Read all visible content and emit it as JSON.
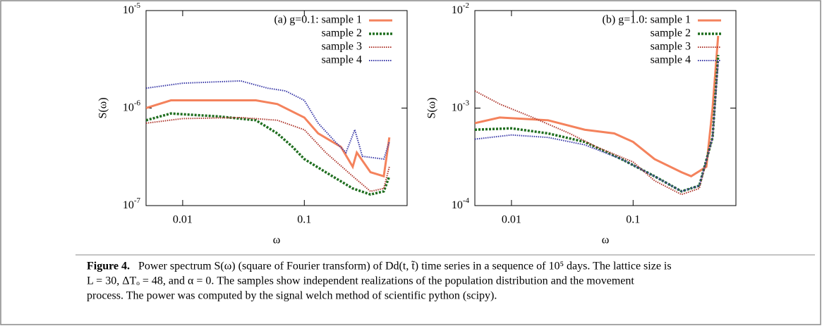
{
  "chart_data": [
    {
      "type": "line",
      "xlabel": "ω",
      "ylabel": "S(ω)",
      "xlog": true,
      "ylog": true,
      "xlim": [
        0.005,
        0.7
      ],
      "ylim": [
        1e-07,
        1e-05
      ],
      "xticks": [
        0.01,
        0.1
      ],
      "yticks": [
        {
          "value": 1e-07,
          "label": "10-7"
        },
        {
          "value": 1e-06,
          "label": "10-6"
        },
        {
          "value": 1e-05,
          "label": "10-5"
        }
      ],
      "legend": "upper right",
      "series": [
        {
          "name": "(a) g=0.1: sample 1",
          "color": "#f4825c",
          "style": "solid",
          "x": [
            0.005,
            0.008,
            0.02,
            0.04,
            0.06,
            0.1,
            0.13,
            0.2,
            0.25,
            0.27,
            0.35,
            0.45,
            0.5
          ],
          "values": [
            1e-06,
            1.2e-06,
            1.2e-06,
            1.2e-06,
            1.1e-06,
            8e-07,
            5.5e-07,
            4e-07,
            2.5e-07,
            3.5e-07,
            2.2e-07,
            2e-07,
            5e-07
          ]
        },
        {
          "name": "sample 2",
          "color": "#1f6e1f",
          "style": "dashed",
          "x": [
            0.005,
            0.008,
            0.02,
            0.04,
            0.06,
            0.08,
            0.1,
            0.15,
            0.25,
            0.35,
            0.45,
            0.5
          ],
          "values": [
            7.5e-07,
            8.8e-07,
            8.2e-07,
            7.5e-07,
            5.5e-07,
            4e-07,
            3e-07,
            2.2e-07,
            1.5e-07,
            1.3e-07,
            1.4e-07,
            2e-07
          ]
        },
        {
          "name": "sample 3",
          "color": "#b03a30",
          "style": "dotted",
          "x": [
            0.005,
            0.01,
            0.03,
            0.06,
            0.1,
            0.15,
            0.25,
            0.35,
            0.45,
            0.5
          ],
          "values": [
            7e-07,
            7.8e-07,
            8e-07,
            7.5e-07,
            6e-07,
            3.5e-07,
            2e-07,
            1.4e-07,
            1.5e-07,
            2.5e-07
          ]
        },
        {
          "name": "sample 4",
          "color": "#3a3aa8",
          "style": "dotted",
          "x": [
            0.005,
            0.01,
            0.03,
            0.05,
            0.07,
            0.1,
            0.13,
            0.18,
            0.22,
            0.26,
            0.3,
            0.45,
            0.5
          ],
          "values": [
            1.6e-06,
            1.8e-06,
            1.9e-06,
            1.6e-06,
            1.5e-06,
            1.2e-06,
            7e-07,
            4.5e-07,
            3.5e-07,
            6e-07,
            3.2e-07,
            3e-07,
            4.5e-07
          ]
        }
      ]
    },
    {
      "type": "line",
      "xlabel": "ω",
      "ylabel": "S(ω)",
      "xlog": true,
      "ylog": true,
      "xlim": [
        0.005,
        0.7
      ],
      "ylim": [
        0.0001,
        0.01
      ],
      "xticks": [
        0.01,
        0.1
      ],
      "yticks": [
        {
          "value": 0.0001,
          "label": "10-4"
        },
        {
          "value": 0.001,
          "label": "10-3"
        },
        {
          "value": 0.01,
          "label": "10-2"
        }
      ],
      "legend": "upper right",
      "series": [
        {
          "name": "(b) g=1.0: sample 1",
          "color": "#f4825c",
          "style": "solid",
          "x": [
            0.005,
            0.008,
            0.02,
            0.04,
            0.07,
            0.1,
            0.15,
            0.25,
            0.3,
            0.4,
            0.45,
            0.5
          ],
          "values": [
            0.0007,
            0.0008,
            0.00075,
            0.0006,
            0.00055,
            0.00045,
            0.0003,
            0.00022,
            0.0002,
            0.00025,
            0.001,
            0.0055
          ]
        },
        {
          "name": "sample 2",
          "color": "#1f6e1f",
          "style": "dashed",
          "x": [
            0.005,
            0.01,
            0.02,
            0.04,
            0.08,
            0.15,
            0.25,
            0.35,
            0.45,
            0.5
          ],
          "values": [
            0.0006,
            0.00062,
            0.00055,
            0.00045,
            0.0003,
            0.0002,
            0.00014,
            0.00016,
            0.0005,
            0.0035
          ]
        },
        {
          "name": "sample 3",
          "color": "#b03a30",
          "style": "dotted",
          "x": [
            0.005,
            0.008,
            0.015,
            0.03,
            0.05,
            0.1,
            0.15,
            0.25,
            0.35,
            0.45,
            0.5
          ],
          "values": [
            0.0015,
            0.0011,
            0.0008,
            0.00055,
            0.0004,
            0.00028,
            0.00018,
            0.00013,
            0.00015,
            0.0005,
            0.003
          ]
        },
        {
          "name": "sample 4",
          "color": "#3a3aa8",
          "style": "dotted",
          "x": [
            0.005,
            0.01,
            0.02,
            0.04,
            0.08,
            0.15,
            0.25,
            0.35,
            0.45,
            0.5
          ],
          "values": [
            0.00048,
            0.00053,
            0.0005,
            0.00042,
            0.0003,
            0.0002,
            0.00014,
            0.00016,
            0.0005,
            0.003
          ]
        }
      ]
    }
  ],
  "caption": {
    "label": "Figure 4.",
    "lines": [
      "Power spectrum S(ω) (square of Fourier transform) of Dd(t, t̃) time series in a sequence of 10⁵ days. The lattice size is",
      "L = 30, ΔTₒ = 48, and α = 0. The samples show independent realizations of the population distribution and the movement",
      "process. The power was computed by the signal welch method of scientific python (scipy)."
    ]
  }
}
